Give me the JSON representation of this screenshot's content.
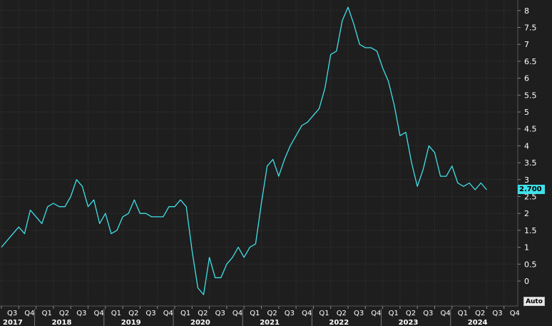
{
  "controls": {
    "auto_label": "Auto"
  },
  "colors": {
    "background": "#1e1e1e",
    "grid": "#3a3a3a",
    "series": "#40e0e8",
    "text": "#ffffff"
  },
  "chart_data": {
    "type": "line",
    "title": "",
    "xlabel": "",
    "ylabel": "",
    "ylim": [
      -0.7,
      8.3
    ],
    "grid": true,
    "y_ticks": [
      "8",
      "7.5",
      "7",
      "6.5",
      "6",
      "5.5",
      "5",
      "4.5",
      "4",
      "3.5",
      "3",
      "2.5",
      "2",
      "1.5",
      "1",
      "0.5",
      "0"
    ],
    "x_quarter_ticks": [
      "Q3",
      "Q4",
      "Q1",
      "Q2",
      "Q3",
      "Q4",
      "Q1",
      "Q2",
      "Q3",
      "Q4",
      "Q1",
      "Q2",
      "Q3",
      "Q4",
      "Q1",
      "Q2",
      "Q3",
      "Q4",
      "Q1",
      "Q2",
      "Q3",
      "Q4",
      "Q1",
      "Q2",
      "Q3",
      "Q4",
      "Q1",
      "Q2",
      "Q3",
      "Q4"
    ],
    "x_year_ticks": [
      "2017",
      "2018",
      "2019",
      "2020",
      "2021",
      "2022",
      "2023",
      "2024"
    ],
    "last_value_label": "2.700",
    "series": [
      {
        "x": [
          "2017-07",
          "2017-08",
          "2017-09",
          "2017-10",
          "2017-11",
          "2017-12",
          "2018-01",
          "2018-02",
          "2018-03",
          "2018-04",
          "2018-05",
          "2018-06",
          "2018-07",
          "2018-08",
          "2018-09",
          "2018-10",
          "2018-11",
          "2018-12",
          "2019-01",
          "2019-02",
          "2019-03",
          "2019-04",
          "2019-05",
          "2019-06",
          "2019-07",
          "2019-08",
          "2019-09",
          "2019-10",
          "2019-11",
          "2019-12",
          "2020-01",
          "2020-02",
          "2020-03",
          "2020-04",
          "2020-05",
          "2020-06",
          "2020-07",
          "2020-08",
          "2020-09",
          "2020-10",
          "2020-11",
          "2020-12",
          "2021-01",
          "2021-02",
          "2021-03",
          "2021-04",
          "2021-05",
          "2021-06",
          "2021-07",
          "2021-08",
          "2021-09",
          "2021-10",
          "2021-11",
          "2021-12",
          "2022-01",
          "2022-02",
          "2022-03",
          "2022-04",
          "2022-05",
          "2022-06",
          "2022-07",
          "2022-08",
          "2022-09",
          "2022-10",
          "2022-11",
          "2022-12",
          "2023-01",
          "2023-02",
          "2023-03",
          "2023-04",
          "2023-05",
          "2023-06",
          "2023-07",
          "2023-08",
          "2023-09",
          "2023-10",
          "2023-11",
          "2023-12",
          "2024-01",
          "2024-02",
          "2024-03",
          "2024-04",
          "2024-05",
          "2024-06",
          "2024-07"
        ],
        "values": [
          1.0,
          1.2,
          1.4,
          1.6,
          1.4,
          2.1,
          1.9,
          1.7,
          2.2,
          2.3,
          2.2,
          2.2,
          2.5,
          3.0,
          2.8,
          2.2,
          2.4,
          1.7,
          2.0,
          1.4,
          1.5,
          1.9,
          2.0,
          2.4,
          2.0,
          2.0,
          1.9,
          1.9,
          1.9,
          2.2,
          2.2,
          2.4,
          2.2,
          0.9,
          -0.2,
          -0.4,
          0.7,
          0.1,
          0.1,
          0.5,
          0.7,
          1.0,
          0.7,
          1.0,
          1.1,
          2.3,
          3.4,
          3.6,
          3.1,
          3.6,
          4.0,
          4.3,
          4.6,
          4.7,
          4.9,
          5.1,
          5.7,
          6.7,
          6.8,
          7.7,
          8.1,
          7.6,
          7.0,
          6.9,
          6.9,
          6.8,
          6.3,
          5.9,
          5.2,
          4.3,
          4.4,
          3.5,
          2.8,
          3.3,
          4.0,
          3.8,
          3.1,
          3.1,
          3.4,
          2.9,
          2.8,
          2.9,
          2.7,
          2.9,
          2.7
        ]
      }
    ]
  }
}
